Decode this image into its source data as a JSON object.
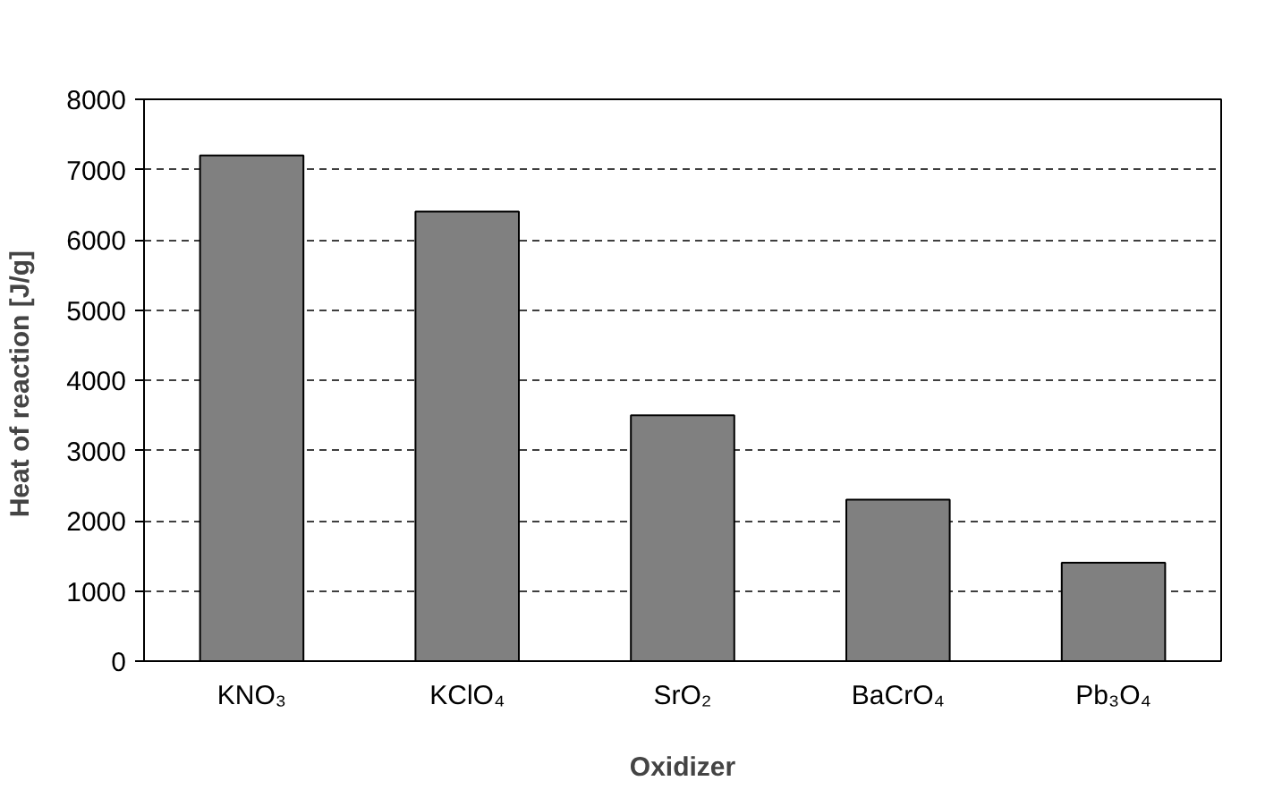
{
  "chart_data": {
    "type": "bar",
    "categories": [
      "KNO₃",
      "KClO₄",
      "SrO₂",
      "BaCrO₄",
      "Pb₃O₄"
    ],
    "values": [
      7200,
      6400,
      3500,
      2300,
      1400
    ],
    "color": "#808080",
    "xlabel": "Oxidizer",
    "ylabel": "Heat of reaction  [J/g]",
    "ylim": [
      0,
      8000
    ],
    "yticks": [
      0,
      1000,
      2000,
      3000,
      4000,
      5000,
      6000,
      7000,
      8000
    ],
    "grid": "y",
    "line_style": "dashed"
  }
}
